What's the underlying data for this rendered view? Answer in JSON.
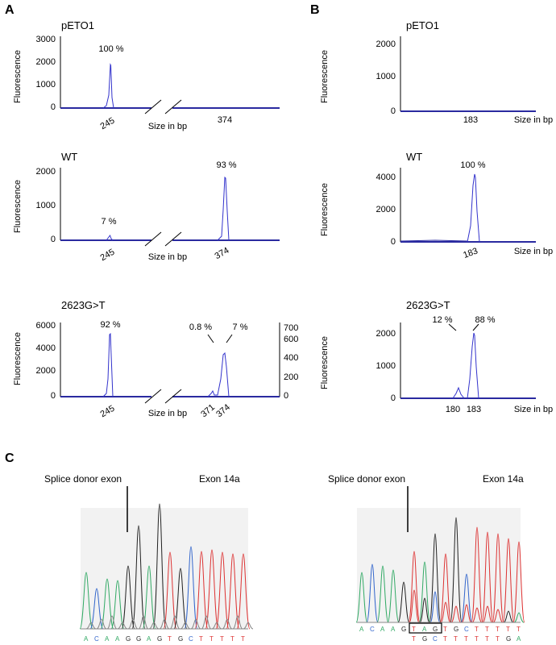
{
  "panels": {
    "A": "A",
    "B": "B",
    "C": "C"
  },
  "axis": {
    "ylabel": "Fluorescence",
    "xlabel": "Size in bp"
  },
  "chart_data": [
    {
      "type": "line",
      "id": "A1",
      "title": "pETO1",
      "ylabel": "Fluorescence",
      "xlabel": "Size in bp",
      "ylim": [
        0,
        3000
      ],
      "yticks": [
        0,
        1000,
        2000,
        3000
      ],
      "x_ticks": [
        "245",
        "374"
      ],
      "peaks": [
        {
          "x": "245",
          "height": 1900,
          "label": "100 %"
        }
      ]
    },
    {
      "type": "line",
      "id": "A2",
      "title": "WT",
      "ylabel": "Fluorescence",
      "xlabel": "Size in bp",
      "ylim": [
        0,
        2000
      ],
      "yticks": [
        0,
        1000,
        2000
      ],
      "x_ticks": [
        "245",
        "374"
      ],
      "peaks": [
        {
          "x": "245",
          "height": 130,
          "label": "7 %"
        },
        {
          "x": "374",
          "height": 1850,
          "label": "93 %"
        }
      ]
    },
    {
      "type": "line",
      "id": "A3",
      "title": "2623G>T",
      "ylabel": "Fluorescence",
      "xlabel": "Size in bp",
      "ylim": [
        0,
        6000
      ],
      "yticks": [
        0,
        2000,
        4000,
        6000
      ],
      "y2ticks": [
        0,
        200,
        400,
        600,
        700
      ],
      "x_ticks": [
        "245",
        "371",
        "374"
      ],
      "peaks": [
        {
          "x": "245",
          "height": 5500,
          "label": "92 %"
        },
        {
          "x": "371",
          "height": 900,
          "label": "0.8 %"
        },
        {
          "x": "374",
          "height": 3700,
          "label": "7 %"
        }
      ]
    },
    {
      "type": "line",
      "id": "B1",
      "title": "pETO1",
      "ylabel": "Fluorescence",
      "xlabel": "Size in bp",
      "ylim": [
        0,
        2300
      ],
      "yticks": [
        0,
        1000,
        2000
      ],
      "x_ticks": [
        "183"
      ],
      "peaks": []
    },
    {
      "type": "line",
      "id": "B2",
      "title": "WT",
      "ylabel": "Fluorescence",
      "xlabel": "Size in bp",
      "ylim": [
        0,
        4600
      ],
      "yticks": [
        0,
        2000,
        4000
      ],
      "x_ticks": [
        "183"
      ],
      "peaks": [
        {
          "x": "183",
          "height": 4150,
          "label": "100 %"
        }
      ]
    },
    {
      "type": "line",
      "id": "B3",
      "title": "2623G>T",
      "ylabel": "Fluorescence",
      "xlabel": "Size in bp",
      "ylim": [
        0,
        2300
      ],
      "yticks": [
        0,
        1000,
        2000
      ],
      "x_ticks": [
        "180",
        "183"
      ],
      "peaks": [
        {
          "x": "180",
          "height": 330,
          "label": "12 %"
        },
        {
          "x": "183",
          "height": 2050,
          "label": "88 %"
        }
      ]
    }
  ],
  "sequencing": [
    {
      "label_splice": "Splice donor exon",
      "label_exon": "Exon 14a",
      "bases": [
        "A",
        "C",
        "A",
        "A",
        "G",
        "G",
        "A",
        "G",
        "T",
        "G",
        "C",
        "T",
        "T",
        "T",
        "T",
        "T"
      ]
    },
    {
      "label_splice": "Splice donor exon",
      "label_exon": "Exon 14a",
      "bases": [
        "A",
        "C",
        "A",
        "A",
        "G",
        "T",
        "A",
        "G",
        "T",
        "G",
        "C",
        "T",
        "T",
        "T",
        "T",
        "T"
      ],
      "bases2": [
        "T",
        "G",
        "C",
        "T",
        "T",
        "T",
        "T",
        "T",
        "T",
        "G",
        "A"
      ]
    }
  ],
  "colors": {
    "trace": "#3333cc",
    "baseline": "#000080",
    "A": "#33aa66",
    "C": "#3366cc",
    "G": "#222222",
    "T": "#dd3333"
  }
}
